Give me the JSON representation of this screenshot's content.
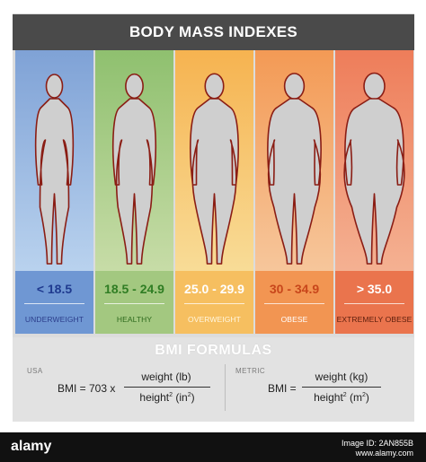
{
  "title": "BODY MASS INDEXES",
  "categories": [
    {
      "range": "< 18.5",
      "label": "UNDERWEIGHT",
      "top": "#7fa2d6",
      "bottom": "#b9d2ee",
      "band": "#6f97d3",
      "text": "#1f3a8f",
      "label_color": "#2c3e8c",
      "width_factor": 0.0
    },
    {
      "range": "18.5 - 24.9",
      "label": "HEALTHY",
      "top": "#8fc06f",
      "bottom": "#c7dca7",
      "band": "#a3c880",
      "text": "#2f7d23",
      "label_color": "#2f6b1e",
      "width_factor": 0.25
    },
    {
      "range": "25.0 - 29.9",
      "label": "OVERWEIGHT",
      "top": "#f6b350",
      "bottom": "#f8dc97",
      "band": "#f6bf60",
      "text": "#ffffff",
      "label_color": "#fff6df",
      "width_factor": 0.5
    },
    {
      "range": "30 - 34.9",
      "label": "OBESE",
      "top": "#f39a55",
      "bottom": "#f6c69b",
      "band": "#f29552",
      "text": "#c8461b",
      "label_color": "#ffffff",
      "width_factor": 0.75
    },
    {
      "range": "> 35.0",
      "label": "EXTREMELY OBESE",
      "top": "#ee7d5a",
      "bottom": "#f4b192",
      "band": "#ea744d",
      "text": "#ffffff",
      "label_color": "#5b1d0c",
      "width_factor": 1.0
    }
  ],
  "formulas": {
    "title": "BMI FORMULAS",
    "usa": {
      "label": "USA",
      "lhs": "BMI = 703 x",
      "numerator": "weight (lb)",
      "denominator_base": "height",
      "denominator_sup": "2",
      "denominator_unit": " (in",
      "denominator_unit_sup": "2",
      "denominator_close": ")"
    },
    "metric": {
      "label": "METRIC",
      "lhs": "BMI =",
      "numerator": "weight (kg)",
      "denominator_base": "height",
      "denominator_sup": "2",
      "denominator_unit": " (m",
      "denominator_unit_sup": "2",
      "denominator_close": ")"
    }
  },
  "footer": {
    "logo": "alamy",
    "id_line1": "Image ID: 2AN855B",
    "id_line2": "www.alamy.com"
  },
  "colors": {
    "body_fill": "#cfcfcf",
    "outline": "#8a1d14",
    "title_bar": "#4a4a4a"
  }
}
